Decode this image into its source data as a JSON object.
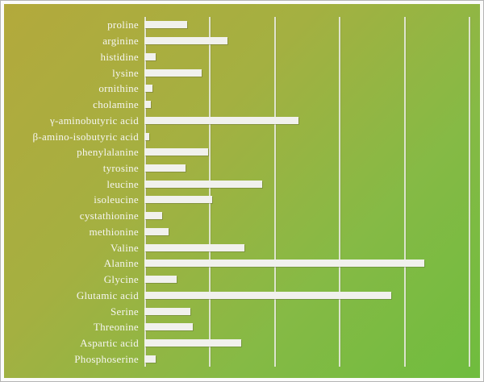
{
  "chart_data": {
    "type": "bar",
    "orientation": "horizontal",
    "title": "",
    "xlabel": "",
    "ylabel": "",
    "categories": [
      "proline",
      "arginine",
      "histidine",
      "lysine",
      "ornithine",
      "cholamine",
      "γ-aminobutyric acid",
      "β-amino-isobutyric acid",
      "phenylalanine",
      "tyrosine",
      "leucine",
      "isoleucine",
      "cystathionine",
      "methionine",
      "Valine",
      "Alanine",
      "Glycine",
      "Glutamic acid",
      "Serine",
      "Threonine",
      "Aspartic acid",
      "Phosphoserine"
    ],
    "values": [
      13.2,
      25.5,
      3.4,
      17.7,
      2.5,
      2.1,
      47.5,
      1.5,
      19.7,
      12.7,
      36.4,
      20.8,
      5.5,
      7.5,
      30.8,
      86.2,
      10.0,
      76.2,
      14.2,
      15.0,
      29.9,
      3.5
    ],
    "value_axis": {
      "tick_labels_visible": false,
      "values_estimated_from_gridlines": true,
      "gridline_interval": 20,
      "gridline_count": 5,
      "xlim": [
        0,
        104
      ]
    },
    "legend": "none",
    "grid": "vertical gridlines on",
    "colors": {
      "bar": "#f1f1ed",
      "background_gradient_start": "#b3a93c",
      "background_gradient_end": "#6fbc3e",
      "gridline": "#e9ebe1",
      "label_text": "#f6f6f2",
      "frame_outer": "#b4b4b4",
      "frame_inner": "#fbfbfa"
    }
  }
}
